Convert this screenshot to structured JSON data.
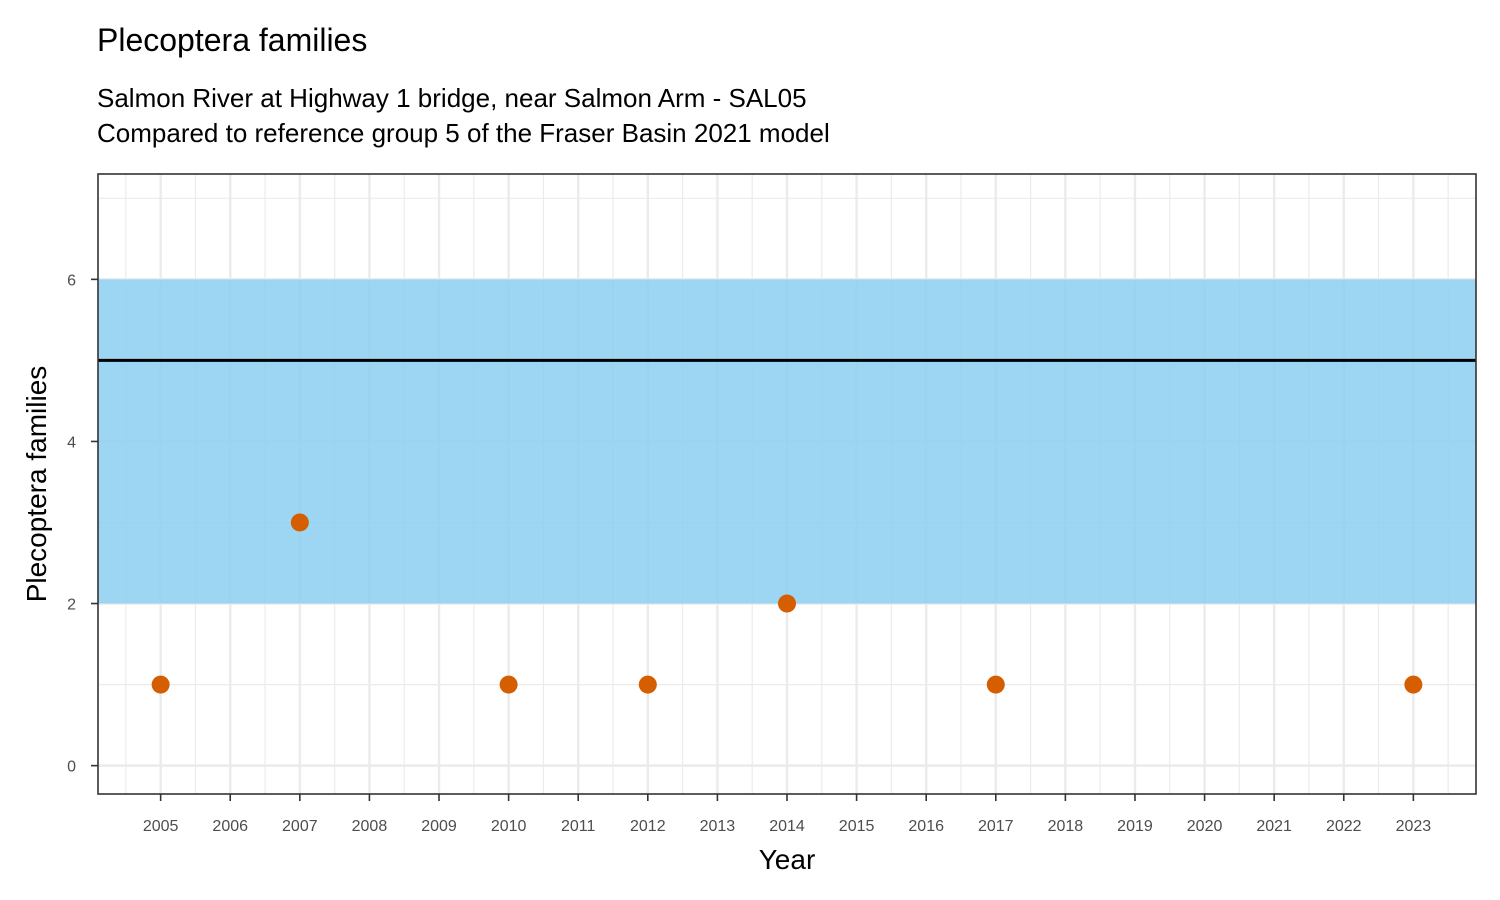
{
  "chart_data": {
    "type": "scatter",
    "title": "Plecoptera families",
    "subtitle_lines": [
      "Salmon River at Highway 1 bridge, near Salmon Arm - SAL05",
      "Compared to reference group 5 of the Fraser Basin 2021 model"
    ],
    "xlabel": "Year",
    "ylabel": "Plecoptera families",
    "xlim": [
      2004.1,
      2023.9
    ],
    "ylim": [
      -0.35,
      7.3
    ],
    "x_ticks": [
      2005,
      2006,
      2007,
      2008,
      2009,
      2010,
      2011,
      2012,
      2013,
      2014,
      2015,
      2016,
      2017,
      2018,
      2019,
      2020,
      2021,
      2022,
      2023
    ],
    "y_ticks": [
      0,
      2,
      4,
      6
    ],
    "grid": true,
    "reference_band": {
      "lower": 2,
      "upper": 6,
      "color": "#8ccff0"
    },
    "reference_line": {
      "value": 5,
      "color": "#000000"
    },
    "points": [
      {
        "x": 2005,
        "y": 1
      },
      {
        "x": 2007,
        "y": 3
      },
      {
        "x": 2010,
        "y": 1
      },
      {
        "x": 2012,
        "y": 1
      },
      {
        "x": 2014,
        "y": 2
      },
      {
        "x": 2017,
        "y": 1
      },
      {
        "x": 2023,
        "y": 1
      }
    ],
    "point_color": "#d55e00"
  }
}
